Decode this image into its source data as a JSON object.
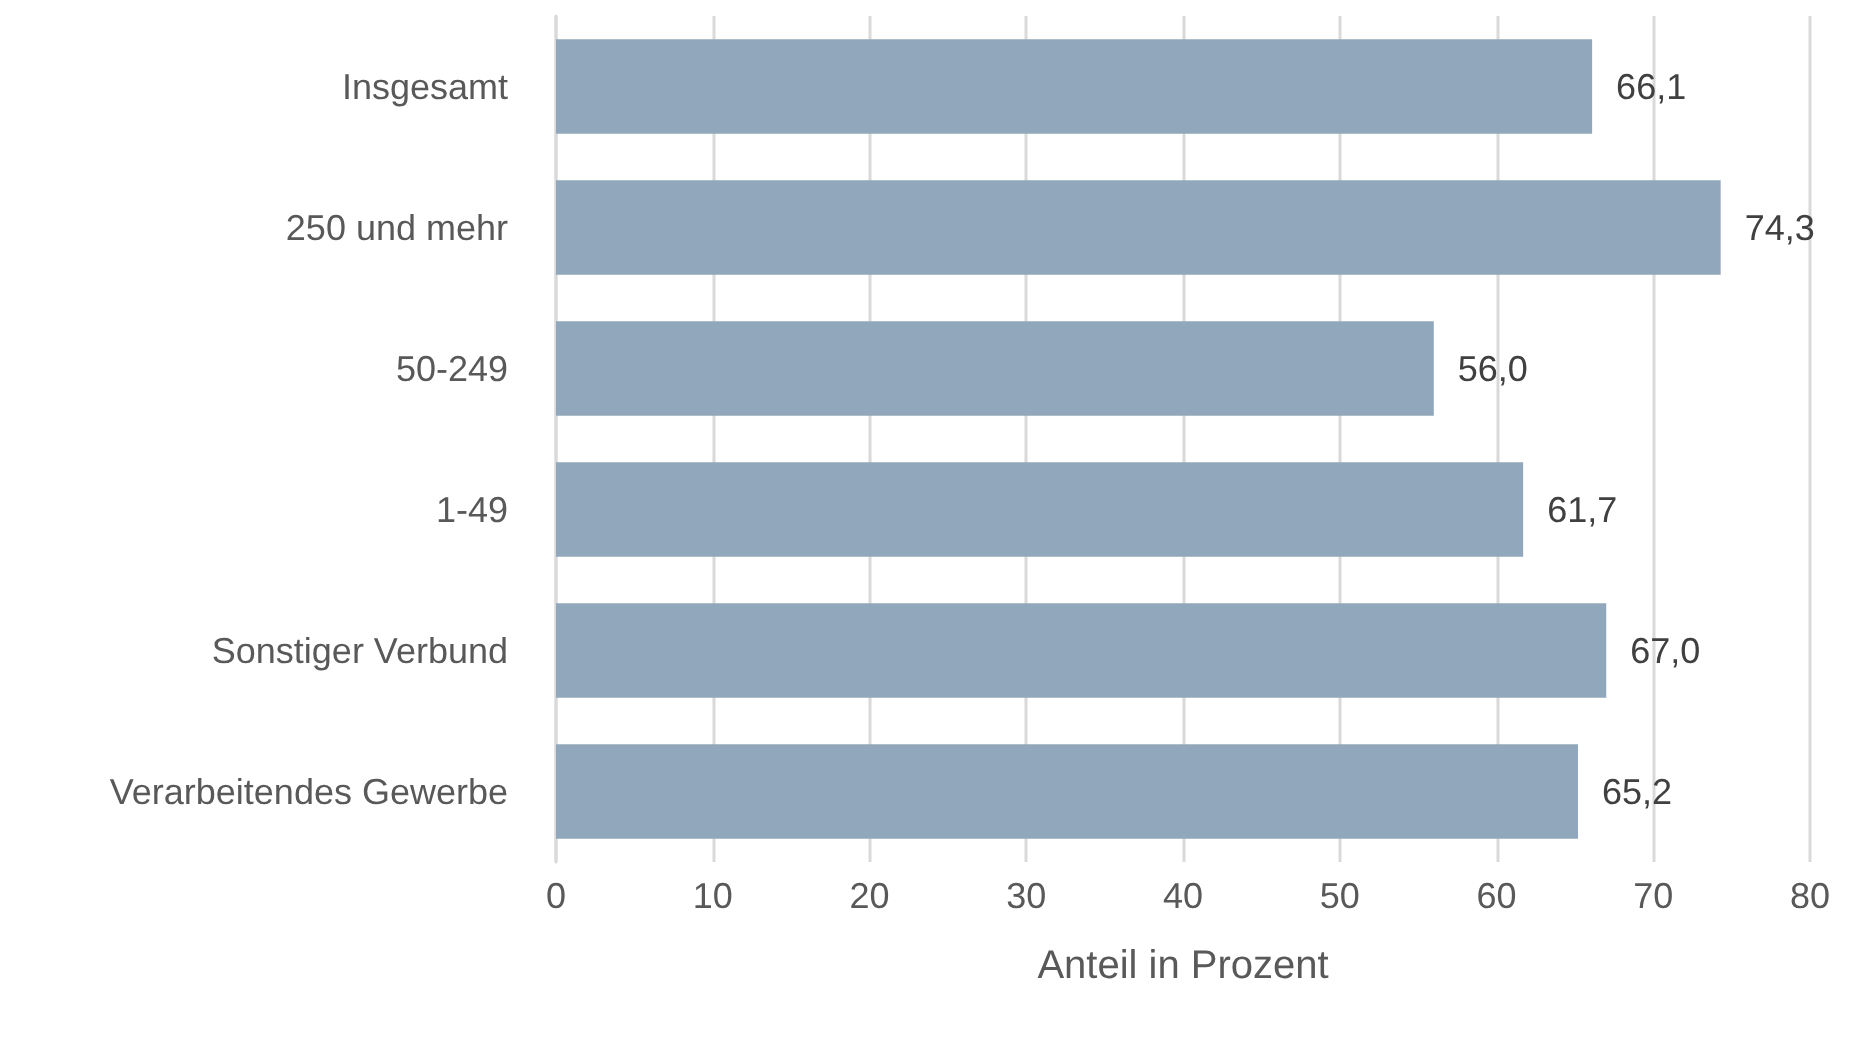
{
  "chart_data": {
    "type": "bar",
    "orientation": "horizontal",
    "xlabel": "Anteil in Prozent",
    "categories": [
      "Insgesamt",
      "250 und mehr",
      "50-249",
      "1-49",
      "Sonstiger Verbund",
      "Verarbeitendes Gewerbe"
    ],
    "values": [
      66.1,
      74.3,
      56.0,
      61.7,
      67.0,
      65.2
    ],
    "value_labels": [
      "66,1",
      "74,3",
      "56,0",
      "61,7",
      "67,0",
      "65,2"
    ],
    "color": "#91a7bb",
    "xlim": [
      0,
      80
    ],
    "xticks": [
      0,
      10,
      20,
      30,
      40,
      50,
      60,
      70,
      80
    ],
    "grid": "x"
  }
}
